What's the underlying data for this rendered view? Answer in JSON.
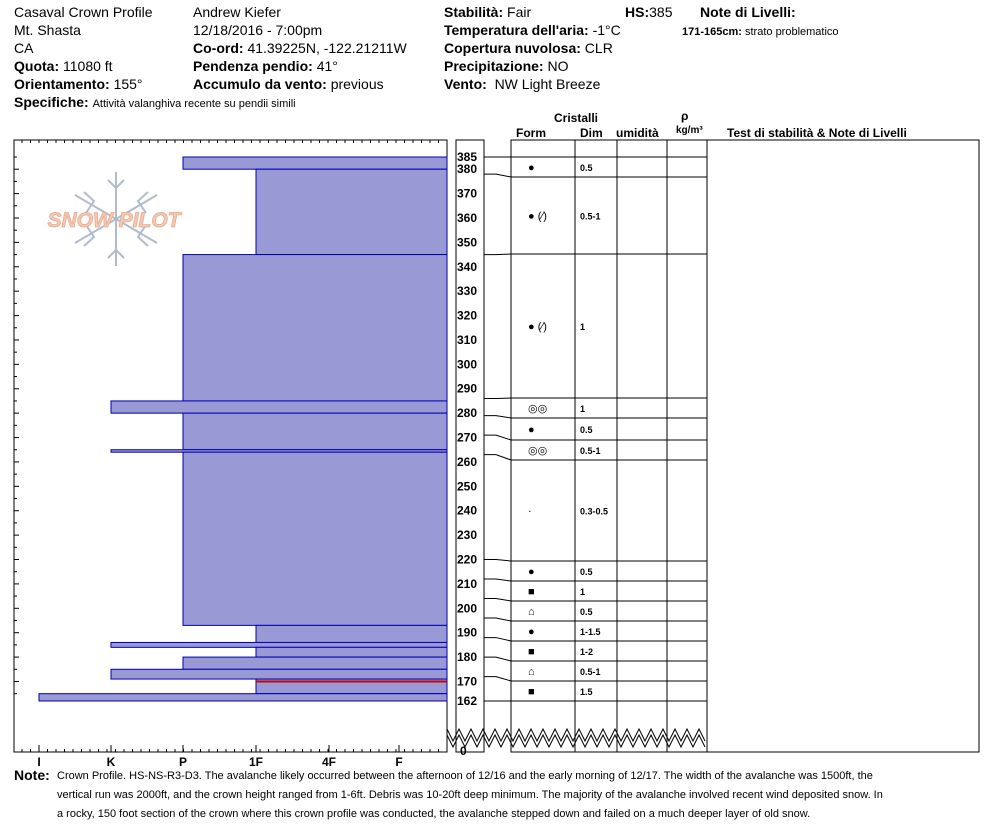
{
  "header": {
    "location_name": "Casaval Crown Profile",
    "area": "Mt. Shasta",
    "state": "CA",
    "quota_label": "Quota:",
    "quota_value": "11080 ft",
    "orient_label": "Orientamento:",
    "orient_value": "155°",
    "specifiche_label": "Specifiche:",
    "specifiche_value": "Attività valanghiva recente su pendii simili",
    "observer": "Andrew Kiefer",
    "datetime": "12/18/2016 - 7:00pm",
    "coord_label": "Co-ord:",
    "coord_value": "41.39225N, -122.21211W",
    "pendenza_label": "Pendenza pendio:",
    "pendenza_value": "41°",
    "accumulo_label": "Accumulo da vento:",
    "accumulo_value": "previous",
    "stabilita_label": "Stabilità:",
    "stabilita_value": "Fair",
    "hs_label": "HS:",
    "hs_value": "385",
    "temp_label": "Temperatura dell'aria:",
    "temp_value": "-1°C",
    "copertura_label": "Copertura nuvolosa:",
    "copertura_value": "CLR",
    "precip_label": "Precipitazione:",
    "precip_value": "NO",
    "vento_label": "Vento:",
    "vento_value": "NW Light Breeze",
    "note_livelli_label": "Note di Livelli:",
    "note_livelli_range": "171-165cm:",
    "note_livelli_text": "strato problematico"
  },
  "columns": {
    "cristalli": "Cristalli",
    "form": "Form",
    "dim": "Dim",
    "umidita": "umidità",
    "rho": "ρ",
    "kgm3": "kg/m³",
    "test": "Test di stabilità & Note di Livelli"
  },
  "logo_text": "SNOW PILOT",
  "note": {
    "label": "Note:",
    "line1": "Crown Profile.  HS-NS-R3-D3.  The avalanche likely occurred between the afternoon of 12/16 and the early morning of 12/17.  The width of the avalanche was 1500ft, the",
    "line2": "vertical run was 2000ft, and the crown height ranged from 1-6ft.  Debris was 10-20ft deep minimum.  The majority of the avalanche involved recent wind deposited snow.  In",
    "line3": "a rocky, 150 foot section of the crown where this crown profile was conducted, the avalanche stepped down and failed on a much deeper layer of old snow."
  },
  "colors": {
    "layer_fill": "#9999d6",
    "layer_stroke": "#0000aa",
    "problem_line": "#cc0000"
  },
  "chart_data": {
    "type": "bar",
    "orientation": "horizontal",
    "hardness_scale": [
      "I",
      "K",
      "P",
      "1F",
      "4F",
      "F"
    ],
    "height_axis_ticks": [
      385,
      380,
      370,
      360,
      350,
      340,
      330,
      320,
      310,
      300,
      290,
      280,
      270,
      260,
      250,
      240,
      230,
      220,
      210,
      200,
      190,
      180,
      170,
      162,
      0
    ],
    "height_range": [
      162,
      385
    ],
    "problem_layer_cm": 170,
    "hardness_layers": [
      {
        "top": 385,
        "bottom": 380,
        "hardness": "P"
      },
      {
        "top": 380,
        "bottom": 345,
        "hardness": "1F"
      },
      {
        "top": 345,
        "bottom": 285,
        "hardness": "P"
      },
      {
        "top": 285,
        "bottom": 280,
        "hardness": "K"
      },
      {
        "top": 280,
        "bottom": 265,
        "hardness": "P"
      },
      {
        "top": 265,
        "bottom": 264,
        "hardness": "K"
      },
      {
        "top": 264,
        "bottom": 193,
        "hardness": "P"
      },
      {
        "top": 193,
        "bottom": 186,
        "hardness": "1F"
      },
      {
        "top": 186,
        "bottom": 184,
        "hardness": "K"
      },
      {
        "top": 184,
        "bottom": 180,
        "hardness": "1F"
      },
      {
        "top": 180,
        "bottom": 175,
        "hardness": "P"
      },
      {
        "top": 175,
        "bottom": 171,
        "hardness": "K"
      },
      {
        "top": 171,
        "bottom": 165,
        "hardness": "1F"
      },
      {
        "top": 165,
        "bottom": 162,
        "hardness": "I"
      }
    ],
    "crystal_layers": [
      {
        "top": 385,
        "bottom": 378,
        "form": "●",
        "dim": "0.5"
      },
      {
        "top": 378,
        "bottom": 345,
        "form": "● (⁄)",
        "dim": "0.5-1"
      },
      {
        "top": 345,
        "bottom": 286,
        "form": "● (⁄)",
        "dim": "1"
      },
      {
        "top": 286,
        "bottom": 279,
        "form": "◎◎",
        "dim": "1"
      },
      {
        "top": 279,
        "bottom": 271,
        "form": "●",
        "dim": "0.5"
      },
      {
        "top": 271,
        "bottom": 263,
        "form": "◎◎",
        "dim": "0.5-1"
      },
      {
        "top": 263,
        "bottom": 220,
        "form": "·",
        "dim": "0.3-0.5"
      },
      {
        "top": 220,
        "bottom": 212,
        "form": "●",
        "dim": "0.5"
      },
      {
        "top": 212,
        "bottom": 204,
        "form": "■",
        "dim": "1"
      },
      {
        "top": 204,
        "bottom": 196,
        "form": "⌂",
        "dim": "0.5"
      },
      {
        "top": 196,
        "bottom": 188,
        "form": "●",
        "dim": "1-1.5"
      },
      {
        "top": 188,
        "bottom": 180,
        "form": "■",
        "dim": "1-2"
      },
      {
        "top": 180,
        "bottom": 172,
        "form": "⌂",
        "dim": "0.5-1"
      },
      {
        "top": 172,
        "bottom": 164,
        "form": "■",
        "dim": "1.5"
      }
    ]
  }
}
